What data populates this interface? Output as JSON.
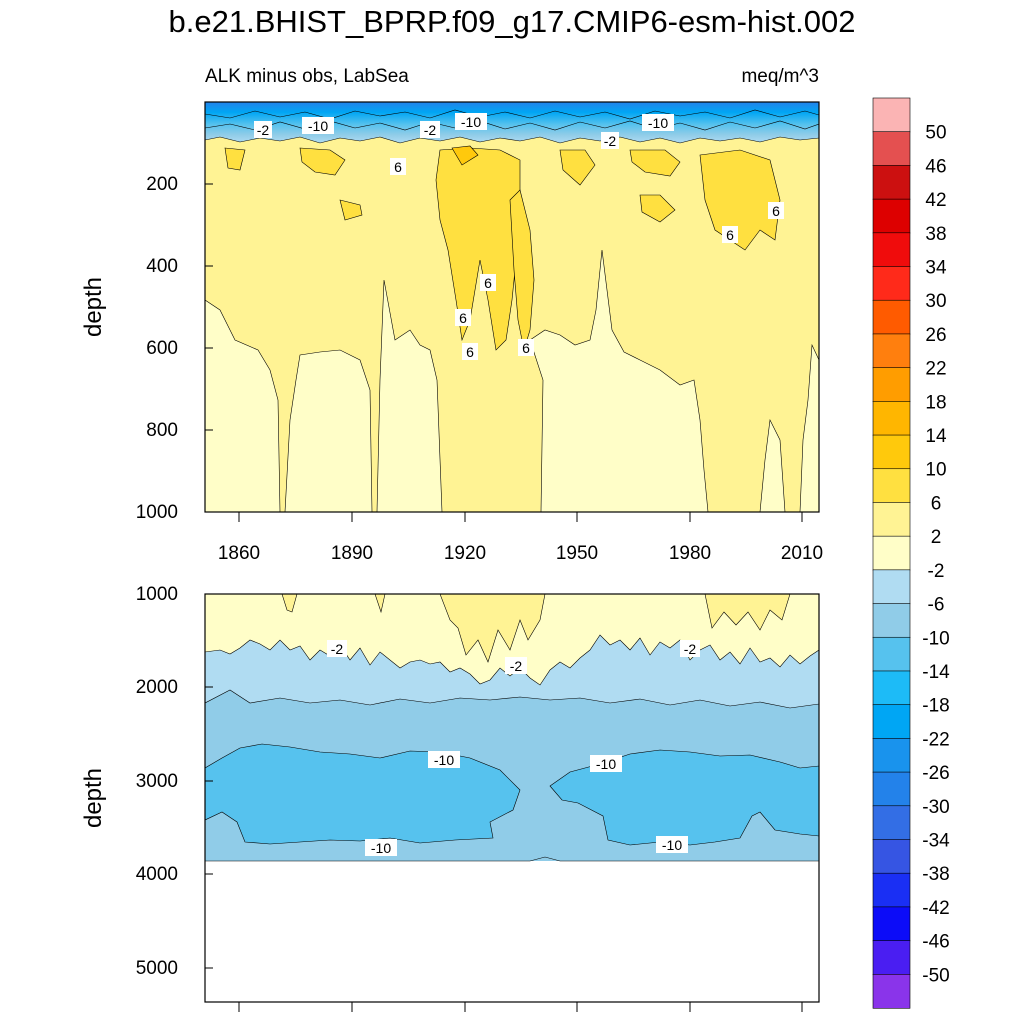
{
  "figure": {
    "title": "b.e21.BHIST_BPRP.f09_g17.CMIP6-esm-hist.002"
  },
  "chart_data": [
    {
      "type": "heatmap",
      "panel": "upper",
      "title": "ALK minus obs, LabSea",
      "units_label": "meq/m^3",
      "xlabel": "",
      "ylabel": "depth",
      "xlim": [
        1850,
        2015
      ],
      "ylim": [
        0,
        1000
      ],
      "x_ticks": [
        1860,
        1890,
        1920,
        1950,
        1980,
        2010
      ],
      "x_tick_labels": [
        "1860",
        "1890",
        "1920",
        "1950",
        "1980",
        "2010"
      ],
      "y_ticks": [
        200,
        400,
        600,
        800,
        1000
      ],
      "y_tick_labels": [
        "200",
        "400",
        "600",
        "800",
        "1000"
      ],
      "contour_labels": [
        {
          "text": "-2",
          "x": 1865,
          "y": 70
        },
        {
          "text": "-10",
          "x": 1880,
          "y": 60
        },
        {
          "text": "-2",
          "x": 1910,
          "y": 65
        },
        {
          "text": "-10",
          "x": 1923,
          "y": 50
        },
        {
          "text": "-2",
          "x": 1958,
          "y": 95
        },
        {
          "text": "-10",
          "x": 1972,
          "y": 50
        },
        {
          "text": "6",
          "x": 1901,
          "y": 170
        },
        {
          "text": "6",
          "x": 1990,
          "y": 325
        },
        {
          "text": "6",
          "x": 2003,
          "y": 260
        },
        {
          "text": "6",
          "x": 1927,
          "y": 440
        },
        {
          "text": "6",
          "x": 1921,
          "y": 525
        },
        {
          "text": "6",
          "x": 1919,
          "y": 610
        },
        {
          "text": "6",
          "x": 1935,
          "y": 600
        }
      ],
      "regions": [
        {
          "band": "[2,6]",
          "description": "upper 100-500 m and columns reaching deeper near 1915-1940 and 1985-2000"
        },
        {
          "band": "[-2,2]",
          "description": "most of 600-1000 m"
        },
        {
          "band": "[6,10]",
          "description": "patches 100-350 m"
        },
        {
          "band": "[-50,-10]",
          "description": "thin surface layer 0-100 m"
        }
      ]
    },
    {
      "type": "heatmap",
      "panel": "lower",
      "title": "",
      "xlabel": "",
      "ylabel": "depth",
      "xlim": [
        1850,
        2015
      ],
      "ylim": [
        1000,
        5400
      ],
      "x_ticks": [
        1860,
        1890,
        1920,
        1950,
        1980,
        2010
      ],
      "y_ticks": [
        1000,
        2000,
        3000,
        4000,
        5000
      ],
      "y_tick_labels": [
        "1000",
        "2000",
        "3000",
        "4000",
        "5000"
      ],
      "no_data_below": 3870,
      "contour_labels": [
        {
          "text": "-2",
          "x": 1883,
          "y": 1640
        },
        {
          "text": "-2",
          "x": 1932,
          "y": 1800
        },
        {
          "text": "-2",
          "x": 1980,
          "y": 1640
        },
        {
          "text": "-10",
          "x": 1911,
          "y": 2830
        },
        {
          "text": "-10",
          "x": 1958,
          "y": 2880
        },
        {
          "text": "-10",
          "x": 1896,
          "y": 3700
        },
        {
          "text": "-10",
          "x": 1972,
          "y": 3680
        }
      ],
      "regions": [
        {
          "band": "[-2,2]",
          "description": "1000 to ~1700 m"
        },
        {
          "band": "[-6,-2]",
          "description": "~1700 to ~2200 m"
        },
        {
          "band": "[-10,-6]",
          "description": "~2200 to ~2700 m and 3600 to 3870 m"
        },
        {
          "band": "[-14,-10]",
          "description": "~2700 to ~3600 m"
        }
      ]
    },
    {
      "type": "colorbar",
      "label_values": [
        "50",
        "46",
        "42",
        "38",
        "34",
        "30",
        "26",
        "22",
        "18",
        "14",
        "10",
        "6",
        "2",
        "-2",
        "-6",
        "-10",
        "-14",
        "-18",
        "-22",
        "-26",
        "-30",
        "-34",
        "-38",
        "-42",
        "-46",
        "-50"
      ],
      "colors": [
        "#fbb4b4",
        "#e45050",
        "#cc1010",
        "#dd0000",
        "#f00c0c",
        "#ff2a1a",
        "#ff5b00",
        "#ff7f0e",
        "#ff9d00",
        "#ffb600",
        "#ffc90c",
        "#ffe040",
        "#fff394",
        "#fffec8",
        "#b0dcf2",
        "#90cce8",
        "#56c2ee",
        "#1dbbf7",
        "#00a6f4",
        "#1993ed",
        "#2382ea",
        "#336ee5",
        "#3655e3",
        "#1a2ff4",
        "#0c0cf8",
        "#4a1ef2",
        "#8a34ea"
      ]
    }
  ]
}
